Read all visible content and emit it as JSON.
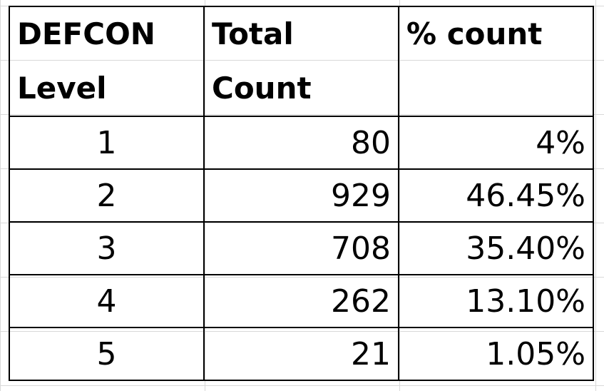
{
  "table": {
    "headers": {
      "level_line1": "DEFCON",
      "level_line2": "Level",
      "count_line1": "Total",
      "count_line2": "Count",
      "percent": "% count"
    },
    "rows": [
      {
        "level": "1",
        "count": "80",
        "percent": "4%"
      },
      {
        "level": "2",
        "count": "929",
        "percent": "46.45%"
      },
      {
        "level": "3",
        "count": "708",
        "percent": "35.40%"
      },
      {
        "level": "4",
        "count": "262",
        "percent": "13.10%"
      },
      {
        "level": "5",
        "count": "21",
        "percent": "1.05%"
      }
    ]
  }
}
